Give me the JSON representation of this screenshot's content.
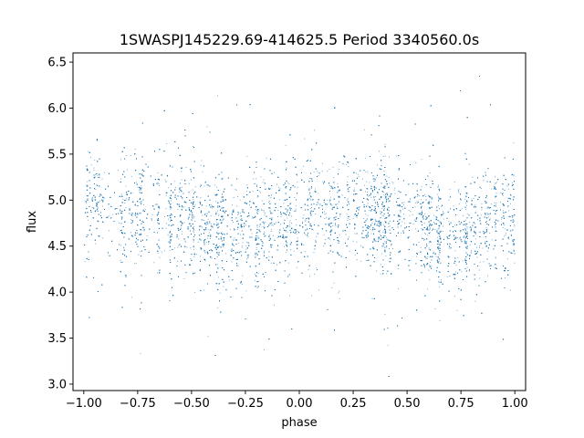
{
  "chart_data": {
    "type": "scatter",
    "title": "1SWASPJ145229.69-414625.5 Period 3340560.0s",
    "xlabel": "phase",
    "ylabel": "flux",
    "xlim": [
      -1.05,
      1.05
    ],
    "ylim": [
      2.93,
      6.6
    ],
    "x_ticks": [
      -1.0,
      -0.75,
      -0.5,
      -0.25,
      0.0,
      0.25,
      0.5,
      0.75,
      1.0
    ],
    "x_tick_labels": [
      "−1.00",
      "−0.75",
      "−0.50",
      "−0.25",
      "0.00",
      "0.25",
      "0.50",
      "0.75",
      "1.00"
    ],
    "y_ticks": [
      3.0,
      3.5,
      4.0,
      4.5,
      5.0,
      5.5,
      6.0,
      6.5
    ],
    "y_tick_labels": [
      "3.0",
      "3.5",
      "4.0",
      "4.5",
      "5.0",
      "5.5",
      "6.0",
      "6.5"
    ],
    "grid": false,
    "legend": "none",
    "point_color": "#1f77b4",
    "series": [
      {
        "phase_range": [
          -1.0,
          1.0
        ],
        "approx_points": 12000,
        "median_flux_profile": {
          "phase": [
            -1.0,
            -0.9,
            -0.8,
            -0.7,
            -0.6,
            -0.5,
            -0.4,
            -0.3,
            -0.2,
            -0.1,
            0.0,
            0.1,
            0.2,
            0.3,
            0.4,
            0.5,
            0.6,
            0.7,
            0.8,
            0.9,
            1.0
          ],
          "flux": [
            4.88,
            4.88,
            4.85,
            4.85,
            4.83,
            4.8,
            4.7,
            4.62,
            4.68,
            4.75,
            4.85,
            4.88,
            4.87,
            4.86,
            4.84,
            4.8,
            4.7,
            4.62,
            4.68,
            4.75,
            4.8
          ]
        },
        "typical_spread": 0.3,
        "flux_range": [
          3.08,
          6.5
        ]
      }
    ]
  }
}
